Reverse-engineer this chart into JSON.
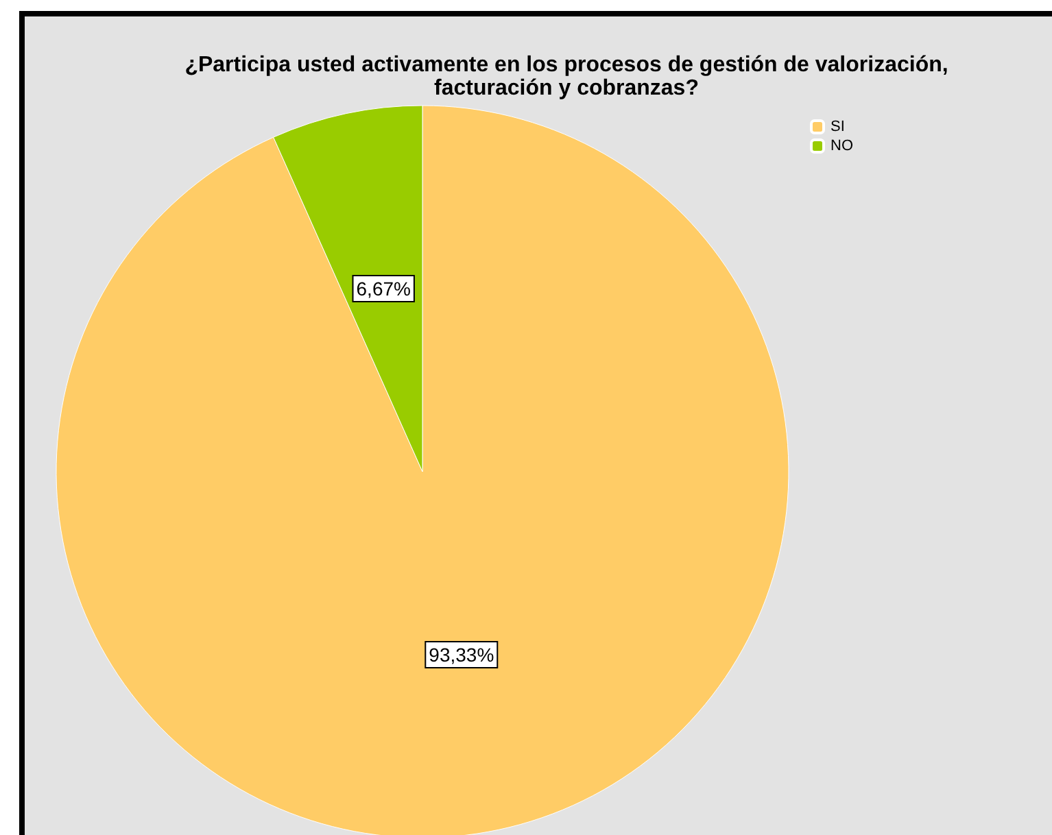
{
  "chart_data": {
    "type": "pie",
    "title": "¿Participa usted activamente en los procesos de gestión de valorización,\nfacturación y cobranzas?",
    "categories": [
      "SI",
      "NO"
    ],
    "values": [
      93.33,
      6.67
    ],
    "colors": [
      "#ffcc66",
      "#99cc00"
    ],
    "value_labels": [
      "93,33%",
      "6,67%"
    ],
    "legend": "top right"
  }
}
